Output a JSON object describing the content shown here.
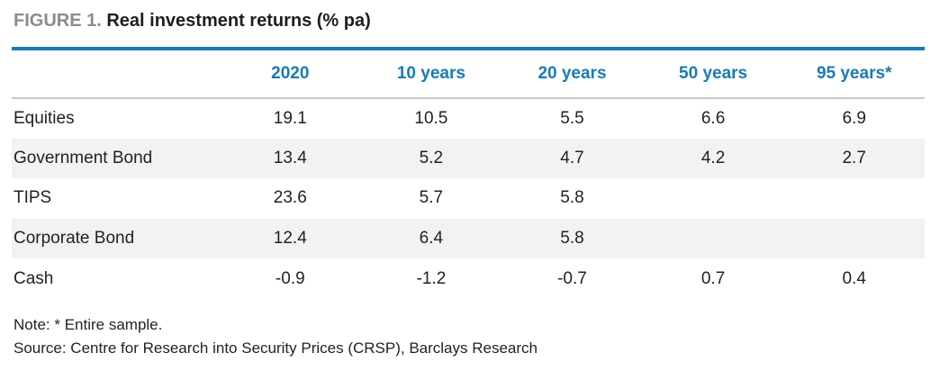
{
  "figure": {
    "label": "FIGURE 1.",
    "title": "Real investment returns (% pa)"
  },
  "table": {
    "columns": [
      "2020",
      "10 years",
      "20 years",
      "50 years",
      "95 years*"
    ],
    "rows": [
      {
        "label": "Equities",
        "values": [
          "19.1",
          "10.5",
          "5.5",
          "6.6",
          "6.9"
        ]
      },
      {
        "label": "Government Bond",
        "values": [
          "13.4",
          "5.2",
          "4.7",
          "4.2",
          "2.7"
        ]
      },
      {
        "label": "TIPS",
        "values": [
          "23.6",
          "5.7",
          "5.8",
          "",
          ""
        ]
      },
      {
        "label": "Corporate Bond",
        "values": [
          "12.4",
          "6.4",
          "5.8",
          "",
          ""
        ]
      },
      {
        "label": "Cash",
        "values": [
          "-0.9",
          "-1.2",
          "-0.7",
          "0.7",
          "0.4"
        ]
      }
    ]
  },
  "notes": {
    "note": "Note: * Entire sample.",
    "source": "Source: Centre for Research into Security Prices (CRSP), Barclays Research"
  },
  "colors": {
    "accent": "#1a7bb3",
    "label_gray": "#8c8c8c",
    "row_shade": "#f2f2f2"
  }
}
